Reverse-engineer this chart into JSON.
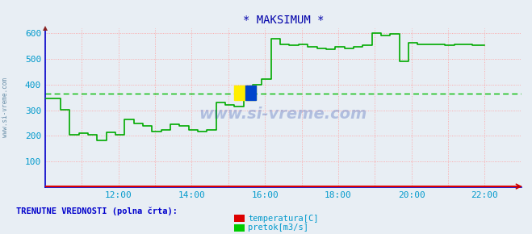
{
  "title": "* MAKSIMUM *",
  "bg_color": "#e8eef4",
  "plot_bg_color": "#e8eef4",
  "grid_color": "#ff9999",
  "spine_color": "#0000cc",
  "text_color": "#0099cc",
  "title_color": "#0000aa",
  "footer_color": "#0000cc",
  "xlabel_ticks": [
    "12:00",
    "14:00",
    "16:00",
    "18:00",
    "20:00",
    "22:00"
  ],
  "xlabel_tick_vals": [
    24,
    48,
    72,
    96,
    120,
    144
  ],
  "ylim": [
    0,
    620
  ],
  "yticks": [
    100,
    200,
    300,
    400,
    500,
    600
  ],
  "xlim": [
    0,
    156
  ],
  "legend_label1": "temperatura[C]",
  "legend_label2": "pretok[m3/s]",
  "legend_color1": "#dd0000",
  "legend_color2": "#00cc00",
  "footer_text": "TRENUTNE VREDNOSTI (polna črta):",
  "mean_line_value": 365,
  "mean_line_color": "#00bb00",
  "temp_value": 3,
  "temp_color": "#dd0000",
  "pretok_color": "#00aa00",
  "watermark_text": "www.si-vreme.com",
  "side_label": "www.si-vreme.com",
  "pretok_steps": [
    [
      0,
      345
    ],
    [
      5,
      345
    ],
    [
      5,
      302
    ],
    [
      8,
      302
    ],
    [
      8,
      205
    ],
    [
      11,
      205
    ],
    [
      11,
      210
    ],
    [
      14,
      210
    ],
    [
      14,
      205
    ],
    [
      17,
      205
    ],
    [
      17,
      182
    ],
    [
      20,
      182
    ],
    [
      20,
      215
    ],
    [
      23,
      215
    ],
    [
      23,
      205
    ],
    [
      26,
      205
    ],
    [
      26,
      265
    ],
    [
      29,
      265
    ],
    [
      29,
      247
    ],
    [
      32,
      247
    ],
    [
      32,
      240
    ],
    [
      35,
      240
    ],
    [
      35,
      217
    ],
    [
      38,
      217
    ],
    [
      38,
      222
    ],
    [
      41,
      222
    ],
    [
      41,
      245
    ],
    [
      44,
      245
    ],
    [
      44,
      240
    ],
    [
      47,
      240
    ],
    [
      47,
      222
    ],
    [
      50,
      222
    ],
    [
      50,
      217
    ],
    [
      53,
      217
    ],
    [
      53,
      222
    ],
    [
      56,
      222
    ],
    [
      56,
      330
    ],
    [
      59,
      330
    ],
    [
      59,
      320
    ],
    [
      62,
      320
    ],
    [
      62,
      315
    ],
    [
      65,
      315
    ],
    [
      65,
      368
    ],
    [
      68,
      368
    ],
    [
      68,
      398
    ],
    [
      71,
      398
    ],
    [
      71,
      422
    ],
    [
      74,
      422
    ],
    [
      74,
      580
    ],
    [
      77,
      580
    ],
    [
      77,
      558
    ],
    [
      80,
      558
    ],
    [
      80,
      552
    ],
    [
      83,
      552
    ],
    [
      83,
      557
    ],
    [
      86,
      557
    ],
    [
      86,
      548
    ],
    [
      89,
      548
    ],
    [
      89,
      542
    ],
    [
      92,
      542
    ],
    [
      92,
      537
    ],
    [
      95,
      537
    ],
    [
      95,
      548
    ],
    [
      98,
      548
    ],
    [
      98,
      542
    ],
    [
      101,
      542
    ],
    [
      101,
      547
    ],
    [
      104,
      547
    ],
    [
      104,
      552
    ],
    [
      107,
      552
    ],
    [
      107,
      602
    ],
    [
      110,
      602
    ],
    [
      110,
      592
    ],
    [
      113,
      592
    ],
    [
      113,
      597
    ],
    [
      116,
      597
    ],
    [
      116,
      492
    ],
    [
      119,
      492
    ],
    [
      119,
      562
    ],
    [
      122,
      562
    ],
    [
      122,
      557
    ],
    [
      125,
      557
    ],
    [
      125,
      557
    ],
    [
      128,
      557
    ],
    [
      128,
      557
    ],
    [
      131,
      557
    ],
    [
      131,
      552
    ],
    [
      134,
      552
    ],
    [
      134,
      557
    ],
    [
      137,
      557
    ],
    [
      137,
      557
    ],
    [
      140,
      557
    ],
    [
      140,
      552
    ],
    [
      144,
      552
    ]
  ]
}
